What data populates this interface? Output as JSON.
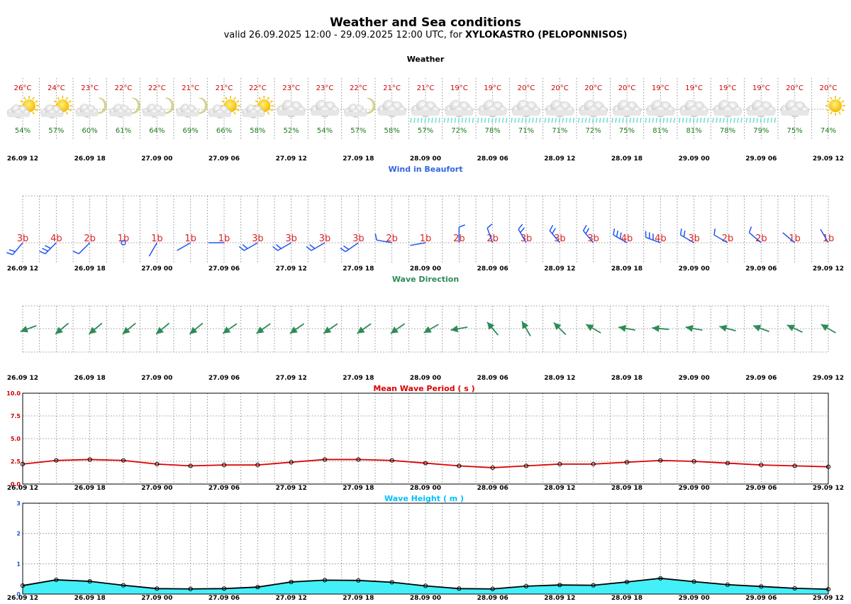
{
  "header": {
    "title": "Weather and Sea conditions",
    "subtitle_prefix": "valid 26.09.2025 12:00 - 29.09.2025 12:00 UTC, for ",
    "location": "XYLOKASTRO (PELOPONNISOS)"
  },
  "colors": {
    "temperature": "#cc0000",
    "humidity": "#1a7a1a",
    "wind_title": "#3366dd",
    "wind_speed": "#dd2222",
    "wind_barb": "#2255ee",
    "wave_dir_title": "#2e8b57",
    "wave_arrow": "#2e8b57",
    "period_title": "#dd0000",
    "period_line": "#dd0000",
    "height_title": "#00bfff",
    "height_fill": "#44f0f8",
    "height_line": "#000000",
    "rain": "#66ddcc"
  },
  "x_labels": [
    "26.09 12",
    "26.09 18",
    "27.09 00",
    "27.09 06",
    "27.09 12",
    "27.09 18",
    "28.09 00",
    "28.09 06",
    "28.09 12",
    "28.09 18",
    "29.09 00",
    "29.09 06",
    "29.09 12"
  ],
  "weather": {
    "title": "Weather",
    "temperature": [
      "26°C",
      "24°C",
      "23°C",
      "22°C",
      "22°C",
      "21°C",
      "21°C",
      "22°C",
      "23°C",
      "23°C",
      "22°C",
      "21°C",
      "21°C",
      "19°C",
      "19°C",
      "20°C",
      "20°C",
      "20°C",
      "20°C",
      "19°C",
      "19°C",
      "19°C",
      "19°C",
      "20°C",
      "20°C"
    ],
    "humidity": [
      "54%",
      "57%",
      "60%",
      "61%",
      "64%",
      "69%",
      "66%",
      "58%",
      "52%",
      "54%",
      "57%",
      "58%",
      "57%",
      "72%",
      "78%",
      "71%",
      "71%",
      "72%",
      "75%",
      "81%",
      "81%",
      "78%",
      "79%",
      "75%",
      "74%"
    ],
    "icons": [
      "sun-cloud-icon",
      "sun-cloud-icon",
      "moon-cloud-icon",
      "moon-cloud-icon",
      "moon-cloud-icon",
      "moon-cloud-icon",
      "sun-cloud-icon",
      "sun-cloud-icon",
      "cloud-icon",
      "cloud-icon",
      "moon-cloud-icon",
      "cloud-icon",
      "rain-cloud-icon",
      "rain-cloud-icon",
      "rain-cloud-icon",
      "rain-cloud-icon",
      "rain-cloud-icon",
      "rain-cloud-icon",
      "rain-cloud-icon",
      "rain-cloud-icon",
      "rain-cloud-icon",
      "rain-cloud-icon",
      "rain-cloud-icon",
      "cloud-icon",
      "sun-icon"
    ]
  },
  "wind": {
    "title": "Wind in Beaufort",
    "labels": [
      "3b",
      "4b",
      "2b",
      "1b",
      "1b",
      "1b",
      "1b",
      "3b",
      "3b",
      "3b",
      "3b",
      "2b",
      "1b",
      "2b",
      "2b",
      "3b",
      "3b",
      "3b",
      "4b",
      "4b",
      "3b",
      "2b",
      "2b",
      "1b",
      "1b"
    ],
    "beaufort": [
      3,
      4,
      2,
      1,
      1,
      1,
      1,
      3,
      3,
      3,
      3,
      2,
      1,
      2,
      2,
      3,
      3,
      3,
      4,
      4,
      3,
      2,
      2,
      1,
      1
    ],
    "direction_deg": [
      220,
      225,
      225,
      180,
      210,
      240,
      270,
      240,
      240,
      240,
      235,
      280,
      260,
      0,
      340,
      330,
      320,
      320,
      300,
      290,
      300,
      300,
      310,
      310,
      330
    ]
  },
  "wave_direction": {
    "title": "Wave Direction",
    "heading_deg": [
      250,
      230,
      230,
      230,
      230,
      230,
      235,
      235,
      235,
      235,
      235,
      235,
      240,
      260,
      320,
      330,
      315,
      300,
      280,
      275,
      280,
      285,
      290,
      295,
      300
    ]
  },
  "chart_data": [
    {
      "type": "line",
      "title": "Mean Wave Period ( s )",
      "x": [
        "26.09 12",
        "26.09 15",
        "26.09 18",
        "26.09 21",
        "27.09 00",
        "27.09 03",
        "27.09 06",
        "27.09 09",
        "27.09 12",
        "27.09 15",
        "27.09 18",
        "27.09 21",
        "28.09 00",
        "28.09 03",
        "28.09 06",
        "28.09 09",
        "28.09 12",
        "28.09 15",
        "28.09 18",
        "28.09 21",
        "29.09 00",
        "29.09 03",
        "29.09 06",
        "29.09 09",
        "29.09 12"
      ],
      "series": [
        {
          "values": [
            2.2,
            2.6,
            2.7,
            2.6,
            2.2,
            2.0,
            2.1,
            2.1,
            2.4,
            2.7,
            2.7,
            2.6,
            2.3,
            2.0,
            1.8,
            2.0,
            2.2,
            2.2,
            2.4,
            2.6,
            2.5,
            2.3,
            2.1,
            2.0,
            1.9
          ]
        }
      ],
      "ylim": [
        0,
        10
      ],
      "yticks": [
        "0.0",
        "2.5",
        "5.0",
        "7.5",
        "10.0"
      ],
      "grid": true
    },
    {
      "type": "area",
      "title": "Wave Height ( m )",
      "x": [
        "26.09 12",
        "26.09 15",
        "26.09 18",
        "26.09 21",
        "27.09 00",
        "27.09 03",
        "27.09 06",
        "27.09 09",
        "27.09 12",
        "27.09 15",
        "27.09 18",
        "27.09 21",
        "28.09 00",
        "28.09 03",
        "28.09 06",
        "28.09 09",
        "28.09 12",
        "28.09 15",
        "28.09 18",
        "28.09 21",
        "29.09 00",
        "29.09 03",
        "29.09 06",
        "29.09 09",
        "29.09 12"
      ],
      "series": [
        {
          "values": [
            0.28,
            0.47,
            0.42,
            0.29,
            0.18,
            0.17,
            0.18,
            0.23,
            0.4,
            0.46,
            0.45,
            0.39,
            0.27,
            0.18,
            0.17,
            0.26,
            0.3,
            0.29,
            0.4,
            0.52,
            0.41,
            0.31,
            0.25,
            0.19,
            0.16
          ]
        }
      ],
      "ylim": [
        0,
        3
      ],
      "yticks": [
        "0",
        "1",
        "2",
        "3"
      ],
      "grid": true
    }
  ]
}
